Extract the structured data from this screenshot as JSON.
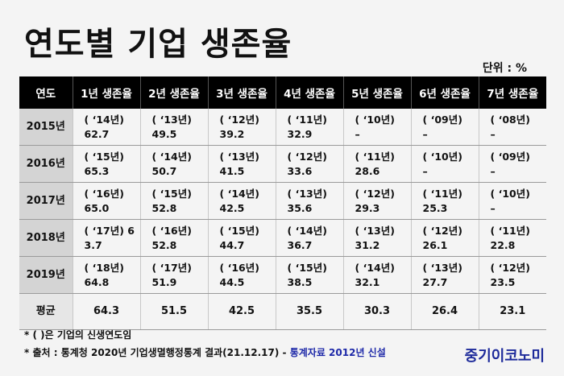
{
  "title": "연도별 기업 생존율",
  "unit": "단위 : %",
  "table": {
    "headers": [
      "연도",
      "1년 생존율",
      "2년 생존율",
      "3년 생존율",
      "4년 생존율",
      "5년 생존율",
      "6년 생존율",
      "7년 생존율"
    ],
    "rows": [
      {
        "year": "2015년",
        "cells": [
          {
            "y": "( ‘14년)",
            "v": "62.7"
          },
          {
            "y": "( ‘13년)",
            "v": "49.5"
          },
          {
            "y": "( ‘12년)",
            "v": "39.2"
          },
          {
            "y": "( ‘11년)",
            "v": "32.9"
          },
          {
            "y": "( ‘10년)",
            "v": "–"
          },
          {
            "y": "( ‘09년)",
            "v": "–"
          },
          {
            "y": "( ‘08년)",
            "v": "–"
          }
        ]
      },
      {
        "year": "2016년",
        "cells": [
          {
            "y": "( ‘15년)",
            "v": "65.3"
          },
          {
            "y": "( ‘14년)",
            "v": "50.7"
          },
          {
            "y": "( ‘13년)",
            "v": "41.5"
          },
          {
            "y": "( ‘12년)",
            "v": "33.6"
          },
          {
            "y": "( ‘11년)",
            "v": "28.6"
          },
          {
            "y": "( ‘10년)",
            "v": "–"
          },
          {
            "y": "( ‘09년)",
            "v": "–"
          }
        ]
      },
      {
        "year": "2017년",
        "cells": [
          {
            "y": "( ‘16년)",
            "v": "65.0"
          },
          {
            "y": "( ‘15년)",
            "v": "52.8"
          },
          {
            "y": "( ‘14년)",
            "v": "42.5"
          },
          {
            "y": "( ‘13년)",
            "v": "35.6"
          },
          {
            "y": "( ‘12년)",
            "v": "29.3"
          },
          {
            "y": "( ‘11년)",
            "v": "25.3"
          },
          {
            "y": "( ‘10년)",
            "v": "–"
          }
        ]
      },
      {
        "year": "2018년",
        "cells": [
          {
            "y": "( ‘17년) 6",
            "v": "3.7"
          },
          {
            "y": "( ‘16년)",
            "v": "52.8"
          },
          {
            "y": "( ‘15년)",
            "v": "44.7"
          },
          {
            "y": "( ‘14년)",
            "v": "36.7"
          },
          {
            "y": "( ‘13년)",
            "v": "31.2"
          },
          {
            "y": "( ‘12년)",
            "v": "26.1"
          },
          {
            "y": "( ‘11년)",
            "v": "22.8"
          }
        ]
      },
      {
        "year": "2019년",
        "cells": [
          {
            "y": "( ‘18년)",
            "v": "64.8"
          },
          {
            "y": "( ‘17년)",
            "v": "51.9"
          },
          {
            "y": "( ‘16년)",
            "v": "44.5"
          },
          {
            "y": "( ‘15년)",
            "v": "38.5"
          },
          {
            "y": "( ‘14년)",
            "v": "32.1"
          },
          {
            "y": "( ‘13년)",
            "v": "27.7"
          },
          {
            "y": "( ‘12년)",
            "v": "23.5"
          }
        ]
      }
    ],
    "average": {
      "label": "평균",
      "values": [
        "64.3",
        "51.5",
        "42.5",
        "35.5",
        "30.3",
        "26.4",
        "23.1"
      ]
    }
  },
  "notes": {
    "note1": "* ( )은 기업의 신생연도임",
    "note2": "* 출처 : 통계청 2020년 기업생멸행정통계 결과(21.12.17) - ",
    "note2_highlight": "통계자료 2012년 신설"
  },
  "brand": "중기이코노미"
}
